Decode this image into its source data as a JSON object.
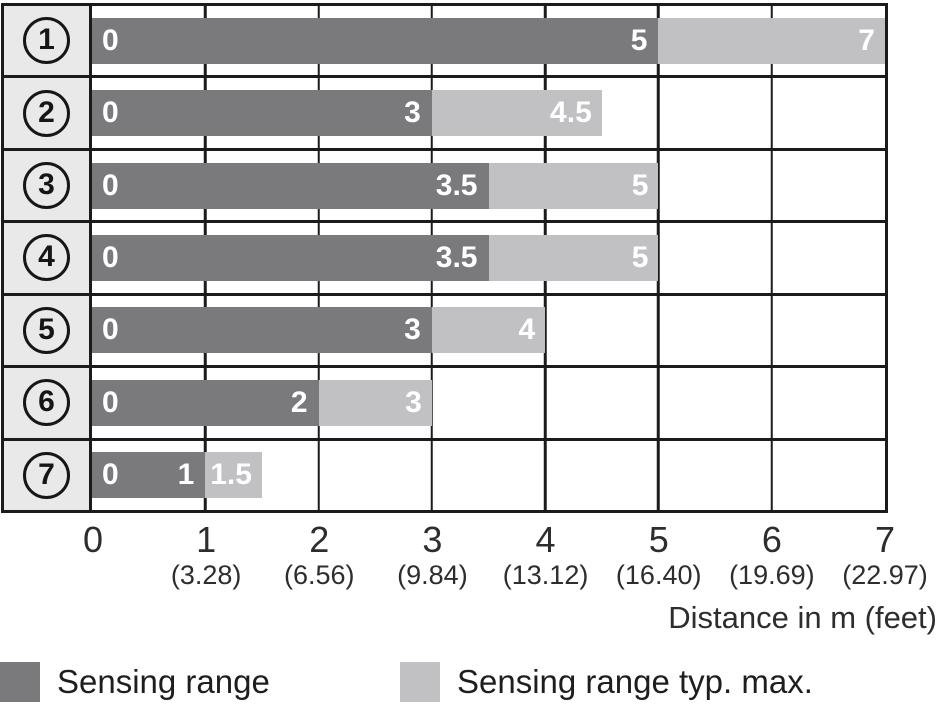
{
  "chart_data": {
    "type": "bar",
    "orientation": "horizontal",
    "xlabel": "Distance in m (feet)",
    "xlim": [
      0,
      7
    ],
    "grid": true,
    "legend_position": "bottom",
    "x_ticks": [
      {
        "m": "0",
        "feet": ""
      },
      {
        "m": "1",
        "feet": "(3.28)"
      },
      {
        "m": "2",
        "feet": "(6.56)"
      },
      {
        "m": "3",
        "feet": "(9.84)"
      },
      {
        "m": "4",
        "feet": "(13.12)"
      },
      {
        "m": "5",
        "feet": "(16.40)"
      },
      {
        "m": "6",
        "feet": "(19.69)"
      },
      {
        "m": "7",
        "feet": "(22.97)"
      }
    ],
    "categories": [
      "1",
      "2",
      "3",
      "4",
      "5",
      "6",
      "7"
    ],
    "series": [
      {
        "name": "Sensing range",
        "values": [
          5,
          3,
          3.5,
          3.5,
          3,
          2,
          1
        ]
      },
      {
        "name": "Sensing range typ. max.",
        "values": [
          7,
          4.5,
          5,
          5,
          4,
          3,
          1.5
        ]
      }
    ],
    "rows": [
      {
        "id": "1",
        "sensing_range": 5,
        "typ_max": 7,
        "start_label": "0",
        "range_label": "5",
        "max_label": "7"
      },
      {
        "id": "2",
        "sensing_range": 3,
        "typ_max": 4.5,
        "start_label": "0",
        "range_label": "3",
        "max_label": "4.5"
      },
      {
        "id": "3",
        "sensing_range": 3.5,
        "typ_max": 5,
        "start_label": "0",
        "range_label": "3.5",
        "max_label": "5"
      },
      {
        "id": "4",
        "sensing_range": 3.5,
        "typ_max": 5,
        "start_label": "0",
        "range_label": "3.5",
        "max_label": "5"
      },
      {
        "id": "5",
        "sensing_range": 3,
        "typ_max": 4,
        "start_label": "0",
        "range_label": "3",
        "max_label": "4"
      },
      {
        "id": "6",
        "sensing_range": 2,
        "typ_max": 3,
        "start_label": "0",
        "range_label": "2",
        "max_label": "3"
      },
      {
        "id": "7",
        "sensing_range": 1,
        "typ_max": 1.5,
        "start_label": "0",
        "range_label": "1",
        "max_label": "1.5"
      }
    ],
    "legend": [
      {
        "label": "Sensing range",
        "color": "#7a7a7c"
      },
      {
        "label": "Sensing range typ. max.",
        "color": "#c1c1c3"
      }
    ],
    "colors": {
      "bar_dark": "#7a7a7c",
      "bar_light": "#c1c1c3",
      "grid_line": "#1b1b1b",
      "row_label_bg": "#e9e9e9",
      "axis_text": "#2d2d2d",
      "bar_text": "#ffffff"
    }
  }
}
